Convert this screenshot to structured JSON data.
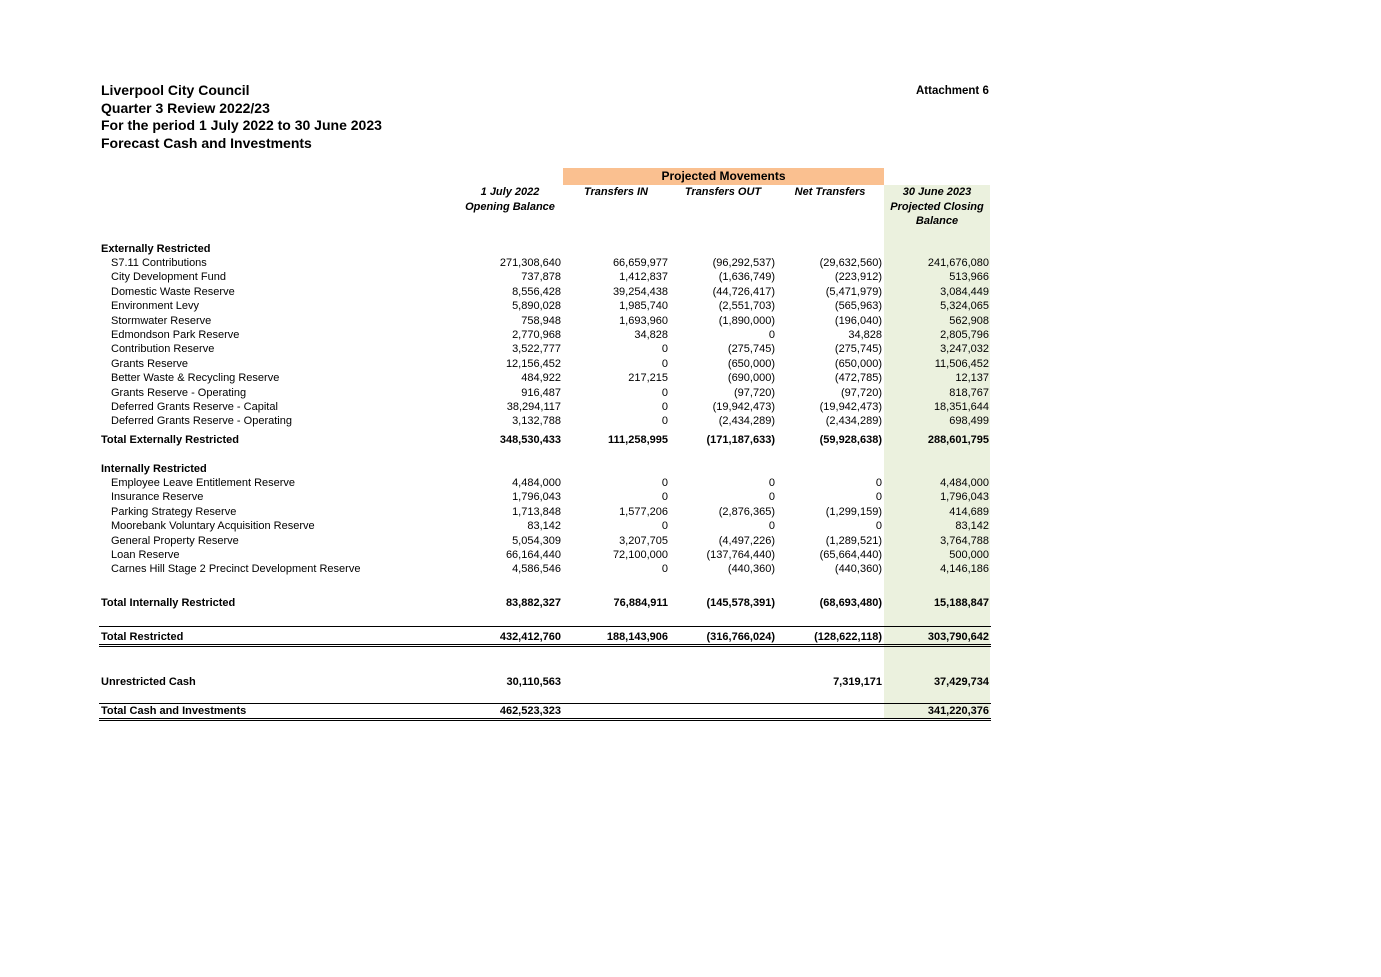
{
  "header": {
    "org": "Liverpool City Council",
    "review": "Quarter 3 Review 2022/23",
    "period": "For the period 1 July 2022 to 30 June 2023",
    "subject": "Forecast Cash and Investments",
    "attachment": "Attachment 6"
  },
  "group_header": "Projected Movements",
  "columns": {
    "opening": [
      "1 July 2022",
      "Opening Balance"
    ],
    "transfers_in": [
      "Transfers IN"
    ],
    "transfers_out": [
      "Transfers OUT"
    ],
    "net": [
      "Net Transfers"
    ],
    "closing": [
      "30 June 2023",
      "Projected Closing",
      "Balance"
    ]
  },
  "external": {
    "heading": "Externally Restricted",
    "rows": [
      [
        "S7.11 Contributions",
        "271,308,640",
        "66,659,977",
        "(96,292,537)",
        "(29,632,560)",
        "241,676,080"
      ],
      [
        "City Development Fund",
        "737,878",
        "1,412,837",
        "(1,636,749)",
        "(223,912)",
        "513,966"
      ],
      [
        "Domestic Waste Reserve",
        "8,556,428",
        "39,254,438",
        "(44,726,417)",
        "(5,471,979)",
        "3,084,449"
      ],
      [
        "Environment Levy",
        "5,890,028",
        "1,985,740",
        "(2,551,703)",
        "(565,963)",
        "5,324,065"
      ],
      [
        "Stormwater Reserve",
        "758,948",
        "1,693,960",
        "(1,890,000)",
        "(196,040)",
        "562,908"
      ],
      [
        "Edmondson Park Reserve",
        "2,770,968",
        "34,828",
        "0",
        "34,828",
        "2,805,796"
      ],
      [
        "Contribution Reserve",
        "3,522,777",
        "0",
        "(275,745)",
        "(275,745)",
        "3,247,032"
      ],
      [
        "Grants Reserve",
        "12,156,452",
        "0",
        "(650,000)",
        "(650,000)",
        "11,506,452"
      ],
      [
        "Better Waste & Recycling Reserve",
        "484,922",
        "217,215",
        "(690,000)",
        "(472,785)",
        "12,137"
      ],
      [
        "Grants Reserve - Operating",
        "916,487",
        "0",
        "(97,720)",
        "(97,720)",
        "818,767"
      ],
      [
        "Deferred Grants Reserve - Capital",
        "38,294,117",
        "0",
        "(19,942,473)",
        "(19,942,473)",
        "18,351,644"
      ],
      [
        "Deferred Grants Reserve - Operating",
        "3,132,788",
        "0",
        "(2,434,289)",
        "(2,434,289)",
        "698,499"
      ]
    ],
    "total": [
      "Total Externally Restricted",
      "348,530,433",
      "111,258,995",
      "(171,187,633)",
      "(59,928,638)",
      "288,601,795"
    ]
  },
  "internal": {
    "heading": "Internally Restricted",
    "rows": [
      [
        "Employee Leave Entitlement Reserve",
        "4,484,000",
        "0",
        "0",
        "0",
        "4,484,000"
      ],
      [
        "Insurance Reserve",
        "1,796,043",
        "0",
        "0",
        "0",
        "1,796,043"
      ],
      [
        "Parking Strategy Reserve",
        "1,713,848",
        "1,577,206",
        "(2,876,365)",
        "(1,299,159)",
        "414,689"
      ],
      [
        "Moorebank Voluntary Acquisition Reserve",
        "83,142",
        "0",
        "0",
        "0",
        "83,142"
      ],
      [
        "General Property Reserve",
        "5,054,309",
        "3,207,705",
        "(4,497,226)",
        "(1,289,521)",
        "3,764,788"
      ],
      [
        "Loan Reserve",
        "66,164,440",
        "72,100,000",
        "(137,764,440)",
        "(65,664,440)",
        "500,000"
      ],
      [
        "Carnes Hill Stage 2 Precinct Development Reserve",
        "4,586,546",
        "0",
        "(440,360)",
        "(440,360)",
        "4,146,186"
      ]
    ],
    "total": [
      "Total Internally Restricted",
      "83,882,327",
      "76,884,911",
      "(145,578,391)",
      "(68,693,480)",
      "15,188,847"
    ]
  },
  "total_restricted": [
    "Total Restricted",
    "432,412,760",
    "188,143,906",
    "(316,766,024)",
    "(128,622,118)",
    "303,790,642"
  ],
  "unrestricted": [
    "Unrestricted Cash",
    "30,110,563",
    "",
    "",
    "7,319,171",
    "37,429,734"
  ],
  "total_cash": [
    "Total Cash and Investments",
    "462,523,323",
    "",
    "",
    "",
    "341,220,376"
  ]
}
